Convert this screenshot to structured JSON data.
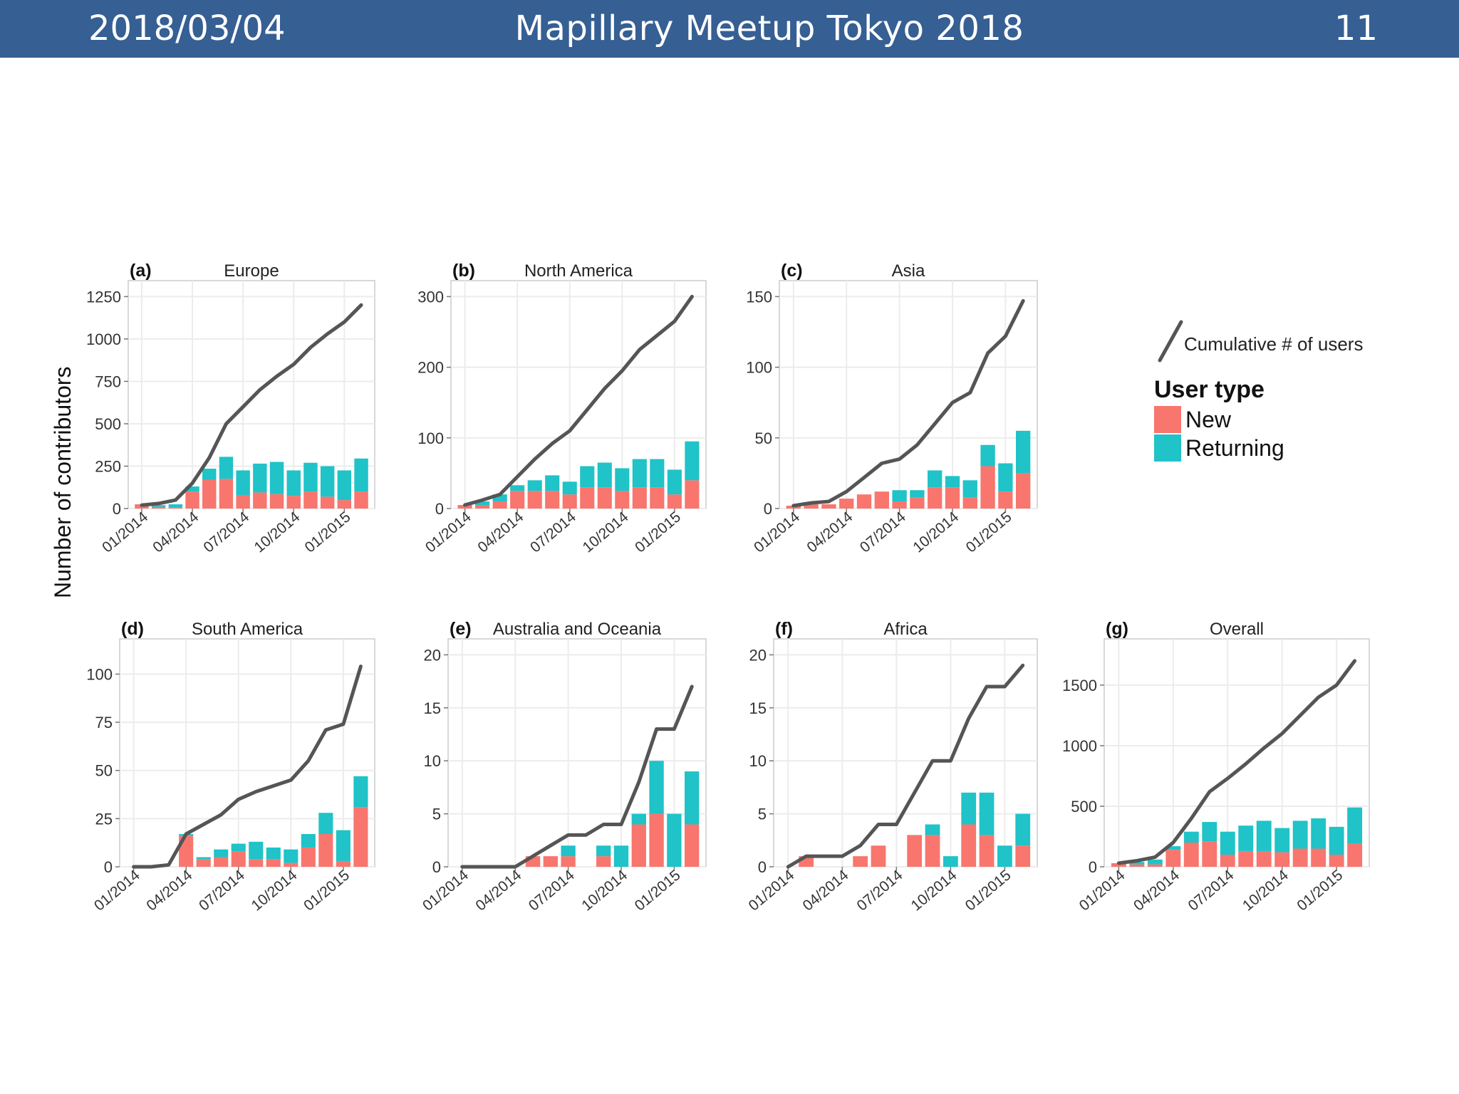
{
  "header": {
    "date": "2018/03/04",
    "title": "Mapillary Meetup Tokyo 2018",
    "page": "11"
  },
  "shared_ylabel": "Number of contributors",
  "legend": {
    "line_label": "Cumulative # of users",
    "title": "User  type",
    "items": [
      {
        "label": "New",
        "color": "#f8766d"
      },
      {
        "label": "Returning",
        "color": "#1fc3c8"
      }
    ]
  },
  "colors": {
    "new": "#f8766d",
    "returning": "#1fc3c8",
    "line": "#555555",
    "grid": "#ececec"
  },
  "chart_data": [
    {
      "type": "bar",
      "letter": "(a)",
      "title": "Europe",
      "xticks": [
        "01/2014",
        "04/2014",
        "07/2014",
        "10/2014",
        "01/2015"
      ],
      "yticks": [
        0,
        250,
        500,
        750,
        1000,
        1250
      ],
      "ylim": [
        0,
        1250
      ],
      "series": [
        {
          "name": "New",
          "values": [
            25,
            10,
            5,
            100,
            170,
            175,
            80,
            95,
            85,
            75,
            100,
            70,
            50,
            100
          ]
        },
        {
          "name": "Returning",
          "values": [
            0,
            10,
            20,
            30,
            65,
            130,
            145,
            170,
            190,
            150,
            170,
            180,
            175,
            195
          ]
        }
      ],
      "cumulative": [
        20,
        30,
        50,
        150,
        300,
        500,
        600,
        700,
        780,
        850,
        950,
        1030,
        1100,
        1200
      ]
    },
    {
      "type": "bar",
      "letter": "(b)",
      "title": "North America",
      "xticks": [
        "01/2014",
        "04/2014",
        "07/2014",
        "10/2014",
        "01/2015"
      ],
      "yticks": [
        0,
        100,
        200,
        300
      ],
      "ylim": [
        0,
        300
      ],
      "series": [
        {
          "name": "New",
          "values": [
            5,
            5,
            10,
            25,
            25,
            25,
            20,
            30,
            30,
            25,
            30,
            30,
            20,
            40
          ]
        },
        {
          "name": "Returning",
          "values": [
            0,
            5,
            10,
            8,
            15,
            22,
            18,
            30,
            35,
            32,
            40,
            40,
            35,
            55
          ]
        }
      ],
      "cumulative": [
        5,
        12,
        20,
        45,
        70,
        92,
        110,
        140,
        170,
        195,
        225,
        245,
        265,
        300
      ]
    },
    {
      "type": "bar",
      "letter": "(c)",
      "title": "Asia",
      "xticks": [
        "01/2014",
        "04/2014",
        "07/2014",
        "10/2014",
        "01/2015"
      ],
      "yticks": [
        0,
        50,
        100,
        150
      ],
      "ylim": [
        0,
        150
      ],
      "series": [
        {
          "name": "New",
          "values": [
            2,
            3,
            3,
            7,
            10,
            12,
            5,
            8,
            15,
            15,
            8,
            30,
            12,
            25
          ]
        },
        {
          "name": "Returning",
          "values": [
            0,
            0,
            0,
            0,
            0,
            0,
            8,
            5,
            12,
            8,
            12,
            15,
            20,
            30
          ]
        }
      ],
      "cumulative": [
        2,
        4,
        5,
        12,
        22,
        32,
        35,
        45,
        60,
        75,
        82,
        110,
        122,
        147
      ]
    },
    {
      "type": "bar",
      "letter": "(d)",
      "title": "South America",
      "xticks": [
        "01/2014",
        "04/2014",
        "07/2014",
        "10/2014",
        "01/2015"
      ],
      "yticks": [
        0,
        25,
        50,
        75,
        100
      ],
      "ylim": [
        0,
        110
      ],
      "series": [
        {
          "name": "New",
          "values": [
            0,
            0,
            0,
            16,
            4,
            5,
            8,
            4,
            4,
            2,
            10,
            17,
            3,
            31
          ]
        },
        {
          "name": "Returning",
          "values": [
            0,
            0,
            0,
            1,
            1,
            4,
            4,
            9,
            6,
            7,
            7,
            11,
            16,
            16
          ]
        }
      ],
      "cumulative": [
        0,
        0,
        1,
        17,
        22,
        27,
        35,
        39,
        42,
        45,
        55,
        71,
        74,
        104
      ]
    },
    {
      "type": "bar",
      "letter": "(e)",
      "title": "Australia and Oceania",
      "xticks": [
        "01/2014",
        "04/2014",
        "07/2014",
        "10/2014",
        "01/2015"
      ],
      "yticks": [
        0,
        5,
        10,
        15,
        20
      ],
      "ylim": [
        0,
        20
      ],
      "series": [
        {
          "name": "New",
          "values": [
            0,
            0,
            0,
            0,
            1,
            1,
            1,
            0,
            1,
            0,
            4,
            5,
            0,
            4
          ]
        },
        {
          "name": "Returning",
          "values": [
            0,
            0,
            0,
            0,
            0,
            0,
            1,
            0,
            1,
            2,
            1,
            5,
            5,
            5
          ]
        }
      ],
      "cumulative": [
        0,
        0,
        0,
        0,
        1,
        2,
        3,
        3,
        4,
        4,
        8,
        13,
        13,
        17
      ]
    },
    {
      "type": "bar",
      "letter": "(f)",
      "title": "Africa",
      "xticks": [
        "01/2014",
        "04/2014",
        "07/2014",
        "10/2014",
        "01/2015"
      ],
      "yticks": [
        0,
        5,
        10,
        15,
        20
      ],
      "ylim": [
        0,
        20
      ],
      "series": [
        {
          "name": "New",
          "values": [
            0,
            1,
            0,
            0,
            1,
            2,
            0,
            3,
            3,
            0,
            4,
            3,
            0,
            2
          ]
        },
        {
          "name": "Returning",
          "values": [
            0,
            0,
            0,
            0,
            0,
            0,
            0,
            0,
            1,
            1,
            3,
            4,
            2,
            3
          ]
        }
      ],
      "cumulative": [
        0,
        1,
        1,
        1,
        2,
        4,
        4,
        7,
        10,
        10,
        14,
        17,
        17,
        19
      ]
    },
    {
      "type": "bar",
      "letter": "(g)",
      "title": "Overall",
      "xticks": [
        "01/2014",
        "04/2014",
        "07/2014",
        "10/2014",
        "01/2015"
      ],
      "yticks": [
        0,
        500,
        1000,
        1500
      ],
      "ylim": [
        0,
        1750
      ],
      "series": [
        {
          "name": "New",
          "values": [
            30,
            20,
            20,
            140,
            200,
            210,
            100,
            130,
            130,
            120,
            150,
            150,
            100,
            190
          ]
        },
        {
          "name": "Returning",
          "values": [
            0,
            20,
            40,
            30,
            90,
            160,
            190,
            210,
            250,
            200,
            230,
            250,
            230,
            300
          ]
        }
      ],
      "cumulative": [
        30,
        50,
        80,
        200,
        400,
        620,
        730,
        850,
        980,
        1100,
        1250,
        1400,
        1500,
        1700
      ]
    }
  ]
}
